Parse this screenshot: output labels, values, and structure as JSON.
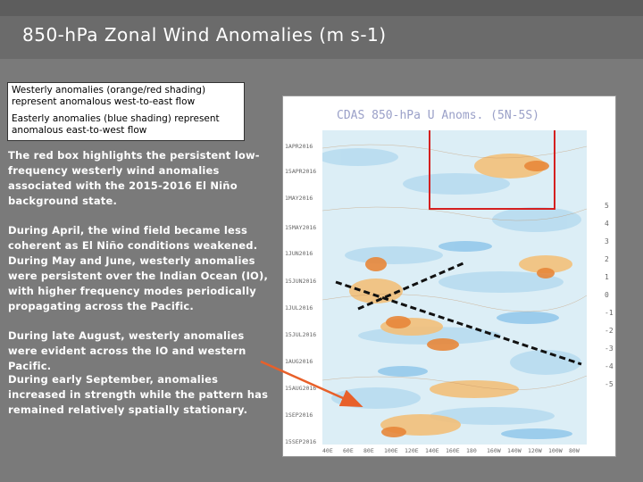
{
  "slide": {
    "title": "850-hPa Zonal Wind Anomalies (m s-1)"
  },
  "legend": {
    "westerly": "Westerly anomalies (orange/red shading) represent anomalous west-to-east flow",
    "easterly": "Easterly anomalies (blue shading) represent anomalous east-to-west flow"
  },
  "paragraphs": [
    "The red box highlights the persistent low-frequency westerly wind anomalies associated with the 2015-2016 El Niño background state.",
    "During April, the wind field became less coherent as El Niño conditions weakened. During May and June, westerly anomalies were persistent over the Indian Ocean (IO), with higher frequency modes periodically propagating across the Pacific.",
    "During late August, westerly anomalies were evident across the IO and western Pacific.",
    "During early September, anomalies increased in strength while the pattern has remained relatively spatially stationary."
  ],
  "figure": {
    "title": "CDAS 850-hPa U Anoms. (5N-5S)",
    "y_labels": [
      "1APR2016",
      "15APR2016",
      "1MAY2016",
      "15MAY2016",
      "1JUN2016",
      "15JUN2016",
      "1JUL2016",
      "15JUL2016",
      "1AUG2016",
      "15AUG2016",
      "1SEP2016",
      "15SEP2016"
    ],
    "x_labels": [
      "40E",
      "60E",
      "80E",
      "100E",
      "120E",
      "140E",
      "160E",
      "180",
      "160W",
      "140W",
      "120W",
      "100W",
      "80W"
    ],
    "colorbar_labels": [
      "5",
      "4",
      "3",
      "2",
      "1",
      "0",
      "-1",
      "-2",
      "-3",
      "-4",
      "-5"
    ],
    "colors": {
      "westerly": "#e8873a",
      "easterly": "#5aa0dc",
      "highlight_box": "#d42020",
      "arrow": "#e8602a"
    }
  }
}
